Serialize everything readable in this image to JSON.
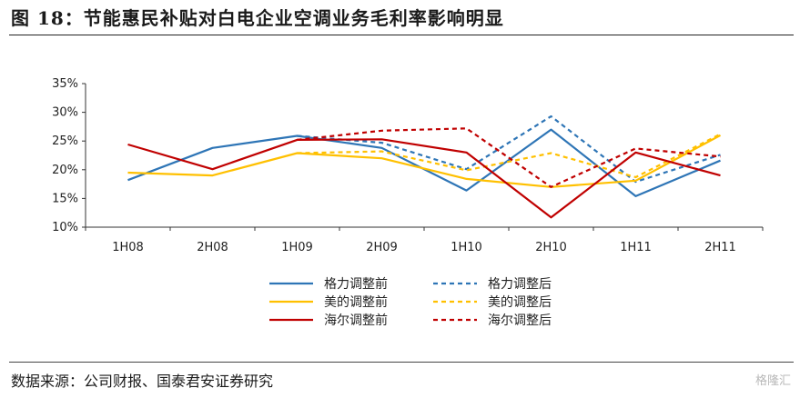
{
  "figure": {
    "title": "图 18：节能惠民补贴对白电企业空调业务毛利率影响明显",
    "source": "数据来源：公司财报、国泰君安证券研究",
    "watermark": "格隆汇"
  },
  "chart_data": {
    "type": "line",
    "title": "",
    "xlabel": "",
    "ylabel": "",
    "categories": [
      "1H08",
      "2H08",
      "1H09",
      "2H09",
      "1H10",
      "2H10",
      "1H11",
      "2H11"
    ],
    "ylim": [
      10,
      35
    ],
    "yticks": [
      10,
      15,
      20,
      25,
      30,
      35
    ],
    "ytick_labels": [
      "10%",
      "15%",
      "20%",
      "25%",
      "30%",
      "35%"
    ],
    "grid": false,
    "legend_position": "bottom",
    "series": [
      {
        "name": "格力调整前",
        "color": "#2e75b6",
        "dash": false,
        "values": [
          18.2,
          23.8,
          25.9,
          23.8,
          16.4,
          27.0,
          15.4,
          21.6
        ]
      },
      {
        "name": "格力调整后",
        "color": "#2e75b6",
        "dash": true,
        "values": [
          null,
          null,
          25.9,
          24.7,
          20.1,
          29.3,
          17.9,
          22.6
        ]
      },
      {
        "name": "美的调整前",
        "color": "#ffc000",
        "dash": false,
        "values": [
          19.5,
          19.0,
          22.9,
          22.0,
          18.4,
          17.0,
          18.1,
          26.0
        ]
      },
      {
        "name": "美的调整后",
        "color": "#ffc000",
        "dash": true,
        "values": [
          null,
          null,
          22.9,
          23.2,
          19.9,
          22.9,
          18.7,
          26.2
        ]
      },
      {
        "name": "海尔调整前",
        "color": "#c00000",
        "dash": false,
        "values": [
          24.4,
          20.1,
          25.2,
          25.3,
          23.0,
          11.7,
          23.0,
          19.0
        ]
      },
      {
        "name": "海尔调整后",
        "color": "#c00000",
        "dash": true,
        "values": [
          null,
          null,
          25.2,
          26.8,
          27.2,
          17.0,
          23.7,
          22.3
        ]
      }
    ]
  }
}
